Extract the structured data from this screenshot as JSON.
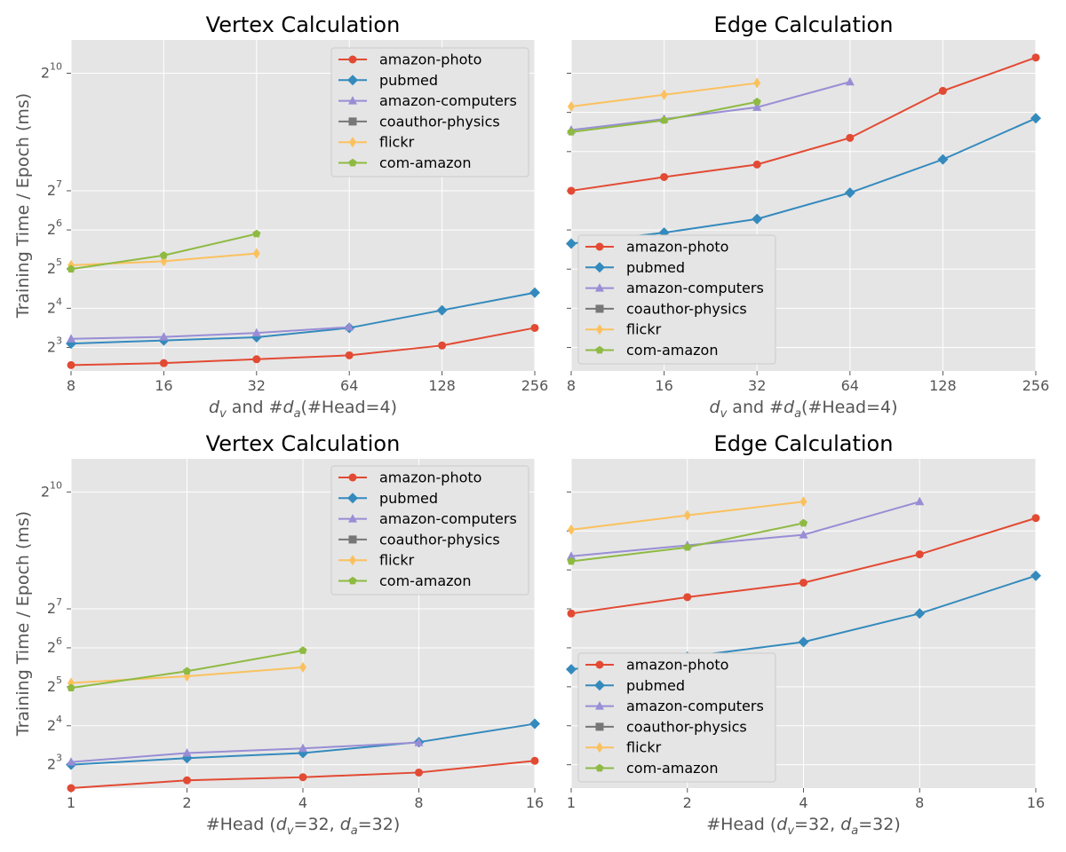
{
  "colors": {
    "amazon-photo": "#E24A33",
    "pubmed": "#348ABD",
    "amazon-computers": "#988ED5",
    "coauthor-physics": "#777777",
    "flickr": "#FBC15E",
    "com-amazon": "#8EBA42",
    "panel_bg": "#E5E5E5",
    "grid": "#FFFFFF"
  },
  "series_markers": {
    "amazon-photo": "circle",
    "pubmed": "diamond",
    "amazon-computers": "triangle",
    "coauthor-physics": "square",
    "flickr": "thin-diamond",
    "com-amazon": "pentagon"
  },
  "chart_data": [
    {
      "type": "line",
      "title": "Vertex Calculation",
      "xlabel_parts": [
        "d",
        "v",
        " and #",
        "d",
        "a",
        "(#Head=4)"
      ],
      "ylabel": "Training Time / Epoch (ms)",
      "x_scale": "log2",
      "y_scale": "log2",
      "x": [
        8,
        16,
        32,
        64,
        128,
        256
      ],
      "xtick_labels": [
        "8",
        "16",
        "32",
        "64",
        "128",
        "256"
      ],
      "ytick_labels": [
        "2",
        "2",
        "2",
        "2",
        "2",
        "2"
      ],
      "ytick_exponents": [
        "3",
        "4",
        "5",
        "6",
        "7",
        "10"
      ],
      "ytick_values_log2": [
        3,
        4,
        5,
        6,
        7,
        10
      ],
      "xlim": [
        8,
        256
      ],
      "ylim_log2": [
        2.4,
        10.85
      ],
      "legend": "upper right",
      "grid": true,
      "series": [
        {
          "name": "amazon-photo",
          "log2_values": [
            2.55,
            2.6,
            2.7,
            2.8,
            3.05,
            3.5
          ]
        },
        {
          "name": "pubmed",
          "log2_values": [
            3.1,
            3.18,
            3.26,
            3.5,
            3.95,
            4.4
          ]
        },
        {
          "name": "amazon-computers",
          "log2_values": [
            3.22,
            3.27,
            3.37,
            3.52,
            null,
            null
          ]
        },
        {
          "name": "coauthor-physics",
          "log2_values": [
            null,
            null,
            null,
            null,
            null,
            null
          ]
        },
        {
          "name": "flickr",
          "log2_values": [
            5.1,
            5.2,
            5.4,
            null,
            null,
            null
          ]
        },
        {
          "name": "com-amazon",
          "log2_values": [
            5.0,
            5.35,
            5.9,
            null,
            null,
            null
          ]
        }
      ]
    },
    {
      "type": "line",
      "title": "Edge Calculation",
      "xlabel_parts": [
        "d",
        "v",
        " and #",
        "d",
        "a",
        "(#Head=4)"
      ],
      "ylabel": "",
      "x_scale": "log2",
      "y_scale": "log2",
      "x": [
        8,
        16,
        32,
        64,
        128,
        256
      ],
      "xtick_labels": [
        "8",
        "16",
        "32",
        "64",
        "128",
        "256"
      ],
      "ytick_labels": [],
      "ytick_exponents": [],
      "ytick_values_log2": [
        3,
        4,
        5,
        6,
        7,
        8,
        9,
        10
      ],
      "xlim": [
        8,
        256
      ],
      "ylim_log2": [
        2.4,
        10.85
      ],
      "legend": "lower left",
      "grid": true,
      "series": [
        {
          "name": "amazon-photo",
          "log2_values": [
            7.0,
            7.35,
            7.67,
            8.35,
            9.55,
            10.4
          ]
        },
        {
          "name": "pubmed",
          "log2_values": [
            5.65,
            5.93,
            6.28,
            6.95,
            7.8,
            8.85
          ]
        },
        {
          "name": "amazon-computers",
          "log2_values": [
            8.55,
            8.83,
            9.13,
            9.78,
            null,
            null
          ]
        },
        {
          "name": "coauthor-physics",
          "log2_values": [
            null,
            null,
            null,
            null,
            null,
            null
          ]
        },
        {
          "name": "flickr",
          "log2_values": [
            9.15,
            9.45,
            9.75,
            null,
            null,
            null
          ]
        },
        {
          "name": "com-amazon",
          "log2_values": [
            8.5,
            8.8,
            9.27,
            null,
            null,
            null
          ]
        }
      ]
    },
    {
      "type": "line",
      "title": "Vertex Calculation",
      "xlabel_parts": [
        "#Head (",
        "d",
        "v",
        "=32, ",
        "d",
        "a",
        "=32)"
      ],
      "ylabel": "Training Time / Epoch (ms)",
      "x_scale": "log2",
      "y_scale": "log2",
      "x": [
        1,
        2,
        4,
        8,
        16
      ],
      "xtick_labels": [
        "1",
        "2",
        "4",
        "8",
        "16"
      ],
      "ytick_labels": [
        "2",
        "2",
        "2",
        "2",
        "2",
        "2"
      ],
      "ytick_exponents": [
        "3",
        "4",
        "5",
        "6",
        "7",
        "10"
      ],
      "ytick_values_log2": [
        3,
        4,
        5,
        6,
        7,
        10
      ],
      "xlim": [
        1,
        16
      ],
      "ylim_log2": [
        2.4,
        10.85
      ],
      "legend": "upper right",
      "grid": true,
      "series": [
        {
          "name": "amazon-photo",
          "log2_values": [
            2.4,
            2.6,
            2.68,
            2.8,
            3.1
          ]
        },
        {
          "name": "pubmed",
          "log2_values": [
            3.0,
            3.17,
            3.3,
            3.58,
            4.05
          ]
        },
        {
          "name": "amazon-computers",
          "log2_values": [
            3.07,
            3.3,
            3.42,
            3.57,
            null
          ]
        },
        {
          "name": "coauthor-physics",
          "log2_values": [
            null,
            null,
            null,
            null,
            null
          ]
        },
        {
          "name": "flickr",
          "log2_values": [
            5.1,
            5.27,
            5.5,
            null,
            null
          ]
        },
        {
          "name": "com-amazon",
          "log2_values": [
            4.97,
            5.4,
            5.93,
            null,
            null
          ]
        }
      ]
    },
    {
      "type": "line",
      "title": "Edge Calculation",
      "xlabel_parts": [
        "#Head (",
        "d",
        "v",
        "=32, ",
        "d",
        "a",
        "=32)"
      ],
      "ylabel": "",
      "x_scale": "log2",
      "y_scale": "log2",
      "x": [
        1,
        2,
        4,
        8,
        16
      ],
      "xtick_labels": [
        "1",
        "2",
        "4",
        "8",
        "16"
      ],
      "ytick_labels": [],
      "ytick_exponents": [],
      "ytick_values_log2": [
        3,
        4,
        5,
        6,
        7,
        8,
        9,
        10
      ],
      "xlim": [
        1,
        16
      ],
      "ylim_log2": [
        2.4,
        10.85
      ],
      "legend": "lower left",
      "grid": true,
      "series": [
        {
          "name": "amazon-photo",
          "log2_values": [
            6.88,
            7.3,
            7.67,
            8.4,
            9.33
          ]
        },
        {
          "name": "pubmed",
          "log2_values": [
            5.45,
            5.77,
            6.15,
            6.88,
            7.85
          ]
        },
        {
          "name": "amazon-computers",
          "log2_values": [
            8.35,
            8.63,
            8.9,
            9.75,
            null
          ]
        },
        {
          "name": "coauthor-physics",
          "log2_values": [
            null,
            null,
            null,
            null,
            null
          ]
        },
        {
          "name": "flickr",
          "log2_values": [
            9.03,
            9.4,
            9.75,
            null,
            null
          ]
        },
        {
          "name": "com-amazon",
          "log2_values": [
            8.22,
            8.58,
            9.2,
            null,
            null
          ]
        }
      ]
    }
  ]
}
